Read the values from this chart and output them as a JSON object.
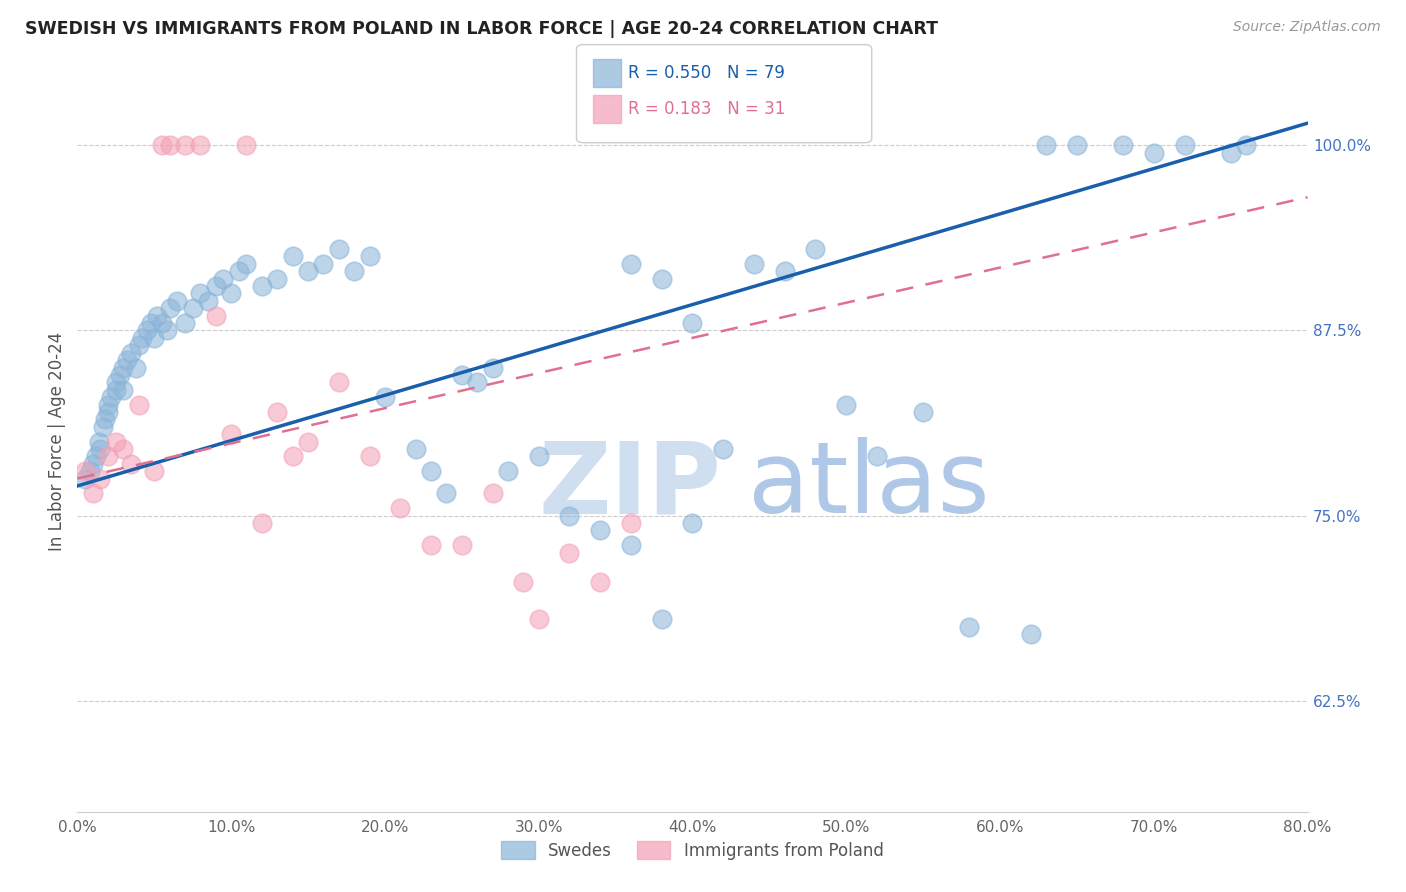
{
  "title": "SWEDISH VS IMMIGRANTS FROM POLAND IN LABOR FORCE | AGE 20-24 CORRELATION CHART",
  "source": "Source: ZipAtlas.com",
  "ylabel": "In Labor Force | Age 20-24",
  "x_tick_labels": [
    "0.0%",
    "10.0%",
    "20.0%",
    "30.0%",
    "40.0%",
    "50.0%",
    "60.0%",
    "70.0%",
    "80.0%"
  ],
  "x_tick_values": [
    0.0,
    10.0,
    20.0,
    30.0,
    40.0,
    50.0,
    60.0,
    70.0,
    80.0
  ],
  "y_tick_labels": [
    "62.5%",
    "75.0%",
    "87.5%",
    "100.0%"
  ],
  "y_tick_values": [
    62.5,
    75.0,
    87.5,
    100.0
  ],
  "xlim": [
    0.0,
    80.0
  ],
  "ylim": [
    55.0,
    105.0
  ],
  "blue_R": 0.55,
  "blue_N": 79,
  "pink_R": 0.183,
  "pink_N": 31,
  "legend_label_blue": "Swedes",
  "legend_label_pink": "Immigrants from Poland",
  "blue_color": "#8ab4d8",
  "pink_color": "#f4a0b5",
  "blue_line_color": "#1a5fac",
  "pink_line_color": "#e07090",
  "watermark_zip": "ZIP",
  "watermark_atlas": "atlas",
  "watermark_color_zip": "#d0dff0",
  "watermark_color_atlas": "#b0c8e8",
  "title_color": "#222222",
  "tick_color_right": "#4472c4",
  "tick_color_bottom": "#666666",
  "grid_color": "#cccccc",
  "blue_line_x0": 0.0,
  "blue_line_y0": 77.0,
  "blue_line_x1": 80.0,
  "blue_line_y1": 101.5,
  "pink_line_x0": 0.0,
  "pink_line_y0": 77.5,
  "pink_line_x1": 80.0,
  "pink_line_y1": 96.5,
  "blue_scatter_x": [
    0.5,
    0.8,
    1.0,
    1.2,
    1.4,
    1.5,
    1.7,
    1.8,
    2.0,
    2.0,
    2.2,
    2.5,
    2.5,
    2.8,
    3.0,
    3.0,
    3.2,
    3.5,
    3.8,
    4.0,
    4.2,
    4.5,
    4.8,
    5.0,
    5.2,
    5.5,
    5.8,
    6.0,
    6.5,
    7.0,
    7.5,
    8.0,
    8.5,
    9.0,
    9.5,
    10.0,
    10.5,
    11.0,
    12.0,
    13.0,
    14.0,
    15.0,
    16.0,
    17.0,
    18.0,
    19.0,
    20.0,
    22.0,
    23.0,
    24.0,
    25.0,
    26.0,
    27.0,
    28.0,
    30.0,
    32.0,
    34.0,
    36.0,
    38.0,
    40.0,
    42.0,
    44.0,
    46.0,
    48.0,
    50.0,
    52.0,
    55.0,
    58.0,
    62.0,
    63.0,
    65.0,
    68.0,
    70.0,
    72.0,
    75.0,
    76.0,
    36.0,
    38.0,
    40.0
  ],
  "blue_scatter_y": [
    77.5,
    78.0,
    78.5,
    79.0,
    80.0,
    79.5,
    81.0,
    81.5,
    82.0,
    82.5,
    83.0,
    83.5,
    84.0,
    84.5,
    85.0,
    83.5,
    85.5,
    86.0,
    85.0,
    86.5,
    87.0,
    87.5,
    88.0,
    87.0,
    88.5,
    88.0,
    87.5,
    89.0,
    89.5,
    88.0,
    89.0,
    90.0,
    89.5,
    90.5,
    91.0,
    90.0,
    91.5,
    92.0,
    90.5,
    91.0,
    92.5,
    91.5,
    92.0,
    93.0,
    91.5,
    92.5,
    83.0,
    79.5,
    78.0,
    76.5,
    84.5,
    84.0,
    85.0,
    78.0,
    79.0,
    75.0,
    74.0,
    73.0,
    68.0,
    74.5,
    79.5,
    92.0,
    91.5,
    93.0,
    82.5,
    79.0,
    82.0,
    67.5,
    67.0,
    100.0,
    100.0,
    100.0,
    99.5,
    100.0,
    99.5,
    100.0,
    92.0,
    91.0,
    88.0
  ],
  "pink_scatter_x": [
    0.5,
    1.0,
    1.5,
    2.0,
    2.5,
    3.0,
    3.5,
    4.0,
    5.0,
    5.5,
    6.0,
    7.0,
    8.0,
    9.0,
    10.0,
    11.0,
    12.0,
    13.0,
    14.0,
    15.0,
    17.0,
    19.0,
    21.0,
    23.0,
    25.0,
    27.0,
    29.0,
    30.0,
    32.0,
    34.0,
    36.0
  ],
  "pink_scatter_y": [
    78.0,
    76.5,
    77.5,
    79.0,
    80.0,
    79.5,
    78.5,
    82.5,
    78.0,
    100.0,
    100.0,
    100.0,
    100.0,
    88.5,
    80.5,
    100.0,
    74.5,
    82.0,
    79.0,
    80.0,
    84.0,
    79.0,
    75.5,
    73.0,
    73.0,
    76.5,
    70.5,
    68.0,
    72.5,
    70.5,
    74.5
  ]
}
